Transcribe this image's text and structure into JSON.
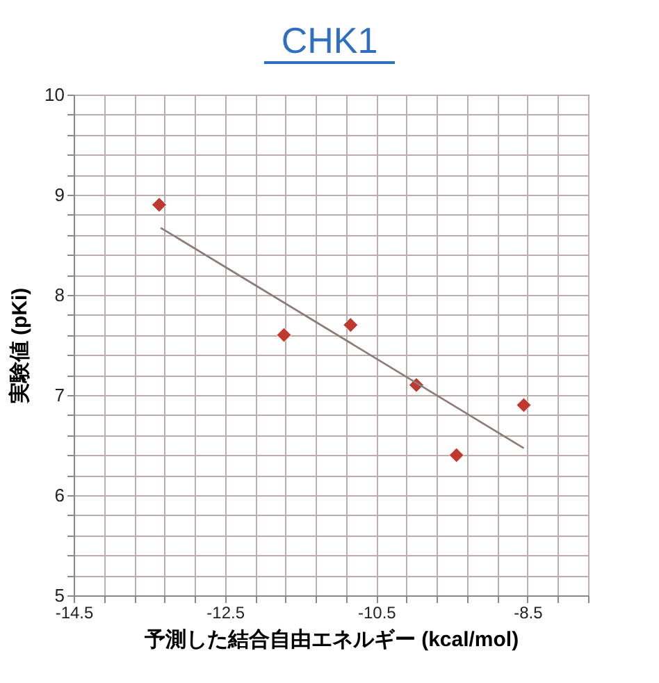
{
  "chart_data": {
    "type": "scatter",
    "title": "CHK1",
    "xlabel": "予測した結合自由エネルギー (kcal/mol)",
    "ylabel": "実験値 (pKi)",
    "xlim": [
      -14.5,
      -7.7
    ],
    "ylim": [
      5,
      10
    ],
    "xticks": [
      -14.5,
      {
        "value": -14.1,
        "label": null
      },
      {
        "value": -13.7,
        "label": null
      },
      {
        "value": -13.3,
        "label": null
      },
      {
        "value": -12.9,
        "label": null
      },
      -12.5,
      {
        "value": -12.1,
        "label": null
      },
      {
        "value": -11.7,
        "label": null
      },
      {
        "value": -11.3,
        "label": null
      },
      {
        "value": -10.9,
        "label": null
      },
      -10.5,
      {
        "value": -10.1,
        "label": null
      },
      {
        "value": -9.7,
        "label": null
      },
      {
        "value": -9.3,
        "label": null
      },
      {
        "value": -8.9,
        "label": null
      },
      -8.5,
      {
        "value": -8.1,
        "label": null
      },
      {
        "value": -7.7,
        "label": null
      }
    ],
    "yticks": [
      5,
      {
        "value": 5.2,
        "label": null
      },
      {
        "value": 5.4,
        "label": null
      },
      {
        "value": 5.6,
        "label": null
      },
      {
        "value": 5.8,
        "label": null
      },
      6,
      {
        "value": 6.2,
        "label": null
      },
      {
        "value": 6.4,
        "label": null
      },
      {
        "value": 6.6,
        "label": null
      },
      {
        "value": 6.8,
        "label": null
      },
      7,
      {
        "value": 7.2,
        "label": null
      },
      {
        "value": 7.4,
        "label": null
      },
      {
        "value": 7.6,
        "label": null
      },
      {
        "value": 7.8,
        "label": null
      },
      8,
      {
        "value": 8.2,
        "label": null
      },
      {
        "value": 8.4,
        "label": null
      },
      {
        "value": 8.6,
        "label": null
      },
      {
        "value": 8.8,
        "label": null
      },
      9,
      {
        "value": 9.2,
        "label": null
      },
      {
        "value": 9.4,
        "label": null
      },
      {
        "value": 9.6,
        "label": null
      },
      {
        "value": 9.8,
        "label": null
      },
      10
    ],
    "grid": true,
    "series": [
      {
        "type": "scatter",
        "marker": "diamond",
        "color": "#c0392f",
        "x": [
          -13.37,
          -11.72,
          -10.84,
          -9.97,
          -9.44,
          -8.55
        ],
        "values": [
          8.9,
          7.6,
          7.7,
          7.1,
          6.4,
          6.9
        ]
      },
      {
        "type": "line",
        "color": "#8c7b78",
        "x": [
          -13.35,
          -8.55
        ],
        "values": [
          8.67,
          6.47
        ]
      }
    ]
  }
}
